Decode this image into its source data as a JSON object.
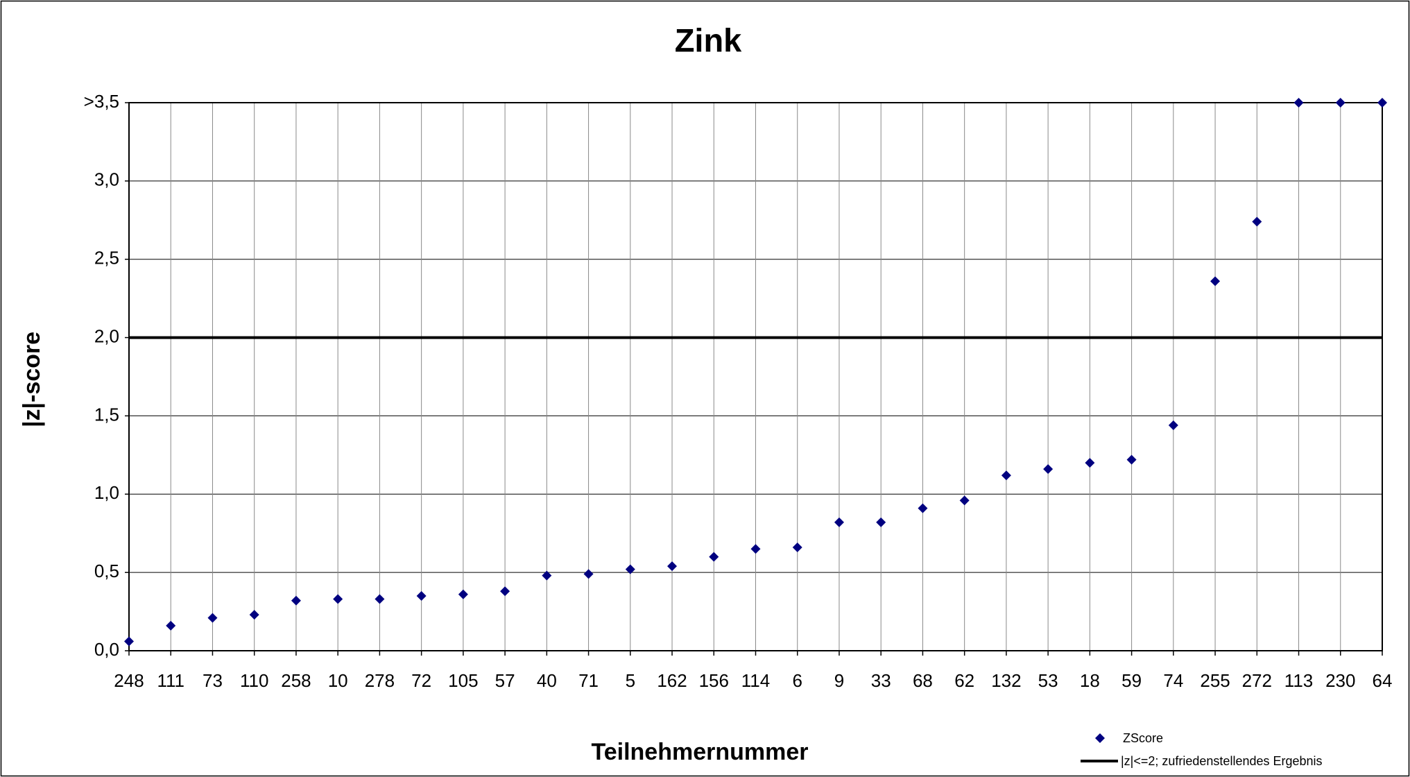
{
  "chart_data": {
    "type": "scatter",
    "title": "Zink",
    "x_label": "Teilnehmernummer",
    "y_label": "|z|-score",
    "categories": [
      "248",
      "111",
      "73",
      "110",
      "258",
      "10",
      "278",
      "72",
      "105",
      "57",
      "40",
      "71",
      "5",
      "162",
      "156",
      "114",
      "6",
      "9",
      "33",
      "68",
      "62",
      "132",
      "53",
      "18",
      "59",
      "74",
      "255",
      "272",
      "113",
      "230",
      "64"
    ],
    "series": [
      {
        "name": "ZScore",
        "color": "#000080",
        "values": [
          0.06,
          0.16,
          0.21,
          0.23,
          0.32,
          0.33,
          0.33,
          0.35,
          0.36,
          0.38,
          0.48,
          0.49,
          0.52,
          0.54,
          0.6,
          0.65,
          0.66,
          0.82,
          0.82,
          0.91,
          0.96,
          1.12,
          1.16,
          1.2,
          1.22,
          1.44,
          2.36,
          2.74,
          3.5,
          3.5,
          3.5
        ]
      }
    ],
    "reference_line": {
      "name": "|z|<=2; zufriedenstellendes Ergebnis",
      "value": 2,
      "color": "#000000"
    },
    "ylim": [
      0,
      3.5
    ],
    "yticks": [
      {
        "value": 0,
        "label": "0,0"
      },
      {
        "value": 0.5,
        "label": "0,5"
      },
      {
        "value": 1,
        "label": "1,0"
      },
      {
        "value": 1.5,
        "label": "1,5"
      },
      {
        "value": 2,
        "label": "2,0"
      },
      {
        "value": 2.5,
        "label": "2,5"
      },
      {
        "value": 3,
        "label": "3,0"
      },
      {
        "value": 3.5,
        "label": ">3,5"
      }
    ],
    "grid": true
  }
}
